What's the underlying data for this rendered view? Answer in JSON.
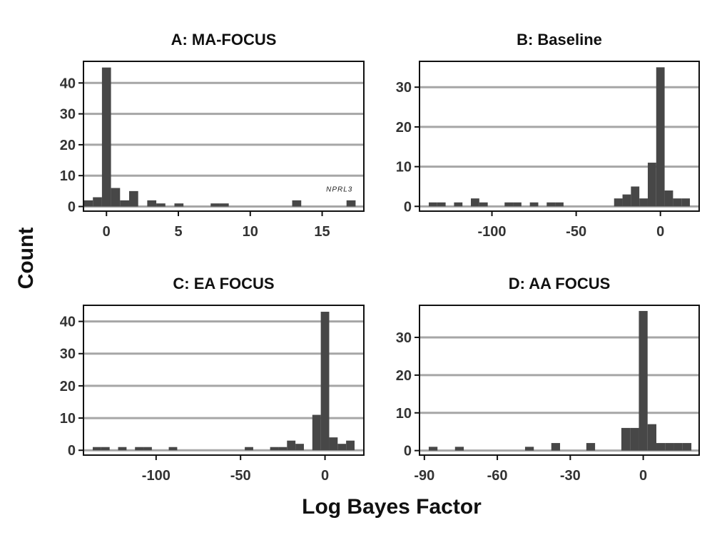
{
  "figure": {
    "xlabel": "Log Bayes Factor",
    "ylabel": "Count"
  },
  "colors": {
    "bar": "#474747",
    "grid": "#a6a6a6",
    "frame": "#111111"
  },
  "chart_data": [
    {
      "type": "bar",
      "title": "A: MA-FOCUS",
      "xlim": [
        -1.6,
        17.9
      ],
      "ylim": [
        -1.5,
        47
      ],
      "xticks": [
        0,
        5,
        10,
        15
      ],
      "yticks": [
        0,
        10,
        20,
        30,
        40
      ],
      "bin_width": 0.63,
      "bins": [
        {
          "x": -1.26,
          "count": 2
        },
        {
          "x": -0.63,
          "count": 3
        },
        {
          "x": 0.0,
          "count": 45
        },
        {
          "x": 0.63,
          "count": 6
        },
        {
          "x": 1.26,
          "count": 2
        },
        {
          "x": 1.89,
          "count": 5
        },
        {
          "x": 3.15,
          "count": 2
        },
        {
          "x": 3.78,
          "count": 1
        },
        {
          "x": 5.04,
          "count": 1
        },
        {
          "x": 7.56,
          "count": 1
        },
        {
          "x": 8.19,
          "count": 1
        },
        {
          "x": 13.23,
          "count": 2
        },
        {
          "x": 17.01,
          "count": 2
        }
      ],
      "annotations": [
        {
          "text": "NPRL3",
          "x": 16.2,
          "y": 4.9
        }
      ]
    },
    {
      "type": "bar",
      "title": "B: Baseline",
      "xlim": [
        -143,
        23
      ],
      "ylim": [
        -1.2,
        36.5
      ],
      "xticks": [
        -100,
        -50,
        0
      ],
      "yticks": [
        0,
        10,
        20,
        30
      ],
      "bin_width": 5,
      "bins": [
        {
          "x": -135,
          "count": 1
        },
        {
          "x": -130,
          "count": 1
        },
        {
          "x": -120,
          "count": 1
        },
        {
          "x": -110,
          "count": 2
        },
        {
          "x": -105,
          "count": 1
        },
        {
          "x": -90,
          "count": 1
        },
        {
          "x": -85,
          "count": 1
        },
        {
          "x": -75,
          "count": 1
        },
        {
          "x": -65,
          "count": 1
        },
        {
          "x": -60,
          "count": 1
        },
        {
          "x": -25,
          "count": 2
        },
        {
          "x": -20,
          "count": 3
        },
        {
          "x": -15,
          "count": 5
        },
        {
          "x": -10,
          "count": 2
        },
        {
          "x": -5,
          "count": 11
        },
        {
          "x": 0,
          "count": 35
        },
        {
          "x": 5,
          "count": 4
        },
        {
          "x": 10,
          "count": 2
        },
        {
          "x": 15,
          "count": 2
        }
      ]
    },
    {
      "type": "bar",
      "title": "C: EA FOCUS",
      "xlim": [
        -143,
        23
      ],
      "ylim": [
        -1.5,
        45
      ],
      "xticks": [
        -100,
        -50,
        0
      ],
      "yticks": [
        0,
        10,
        20,
        30,
        40
      ],
      "bin_width": 5,
      "bins": [
        {
          "x": -135,
          "count": 1
        },
        {
          "x": -130,
          "count": 1
        },
        {
          "x": -120,
          "count": 1
        },
        {
          "x": -110,
          "count": 1
        },
        {
          "x": -105,
          "count": 1
        },
        {
          "x": -90,
          "count": 1
        },
        {
          "x": -45,
          "count": 1
        },
        {
          "x": -30,
          "count": 1
        },
        {
          "x": -25,
          "count": 1
        },
        {
          "x": -20,
          "count": 3
        },
        {
          "x": -15,
          "count": 2
        },
        {
          "x": -5,
          "count": 11
        },
        {
          "x": 0,
          "count": 43
        },
        {
          "x": 5,
          "count": 4
        },
        {
          "x": 10,
          "count": 2
        },
        {
          "x": 15,
          "count": 3
        }
      ]
    },
    {
      "type": "bar",
      "title": "D: AA FOCUS",
      "xlim": [
        -92,
        23
      ],
      "ylim": [
        -1.2,
        38.5
      ],
      "xticks": [
        -90,
        -60,
        -30,
        0
      ],
      "yticks": [
        0,
        10,
        20,
        30
      ],
      "bin_width": 3.6,
      "bins": [
        {
          "x": -86.4,
          "count": 1
        },
        {
          "x": -75.6,
          "count": 1
        },
        {
          "x": -46.8,
          "count": 1
        },
        {
          "x": -36.0,
          "count": 2
        },
        {
          "x": -21.6,
          "count": 2
        },
        {
          "x": -3.6,
          "count": 6
        },
        {
          "x": -7.2,
          "count": 6
        },
        {
          "x": 0.0,
          "count": 37
        },
        {
          "x": 3.6,
          "count": 7
        },
        {
          "x": 7.2,
          "count": 2
        },
        {
          "x": 10.8,
          "count": 2
        },
        {
          "x": 14.4,
          "count": 2
        },
        {
          "x": 18.0,
          "count": 2
        }
      ]
    }
  ]
}
